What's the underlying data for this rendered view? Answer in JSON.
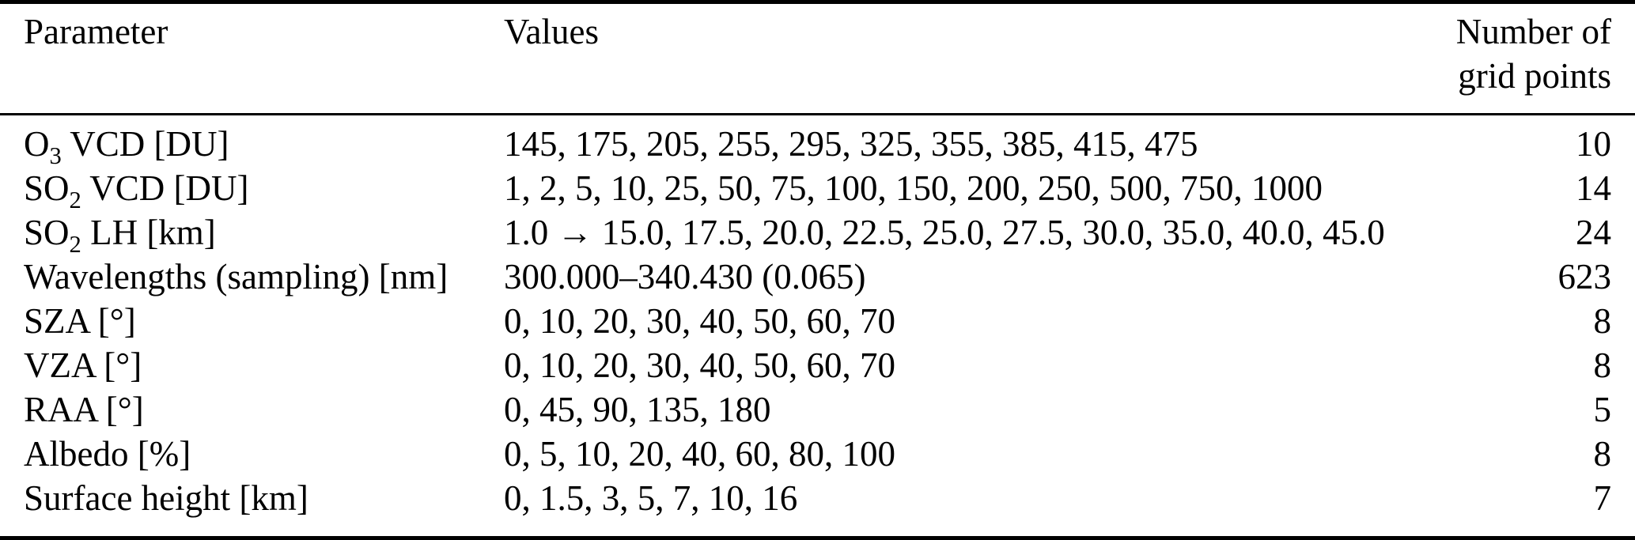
{
  "colors": {
    "background": "#ffffff",
    "text": "#000000",
    "rule": "#000000"
  },
  "table": {
    "header": {
      "parameter": "Parameter",
      "values": "Values",
      "grid_points_line1": "Number of",
      "grid_points_line2": "grid points"
    },
    "rows": [
      {
        "param_base": "O",
        "param_sub": "3",
        "param_rest": " VCD [DU]",
        "values": "145, 175, 205, 255, 295, 325, 355, 385, 415, 475",
        "grid_points": "10"
      },
      {
        "param_base": "SO",
        "param_sub": "2",
        "param_rest": " VCD [DU]",
        "values": "1, 2, 5, 10, 25, 50, 75, 100, 150, 200, 250, 500, 750, 1000",
        "grid_points": "14"
      },
      {
        "param_base": "SO",
        "param_sub": "2",
        "param_rest": " LH [km]",
        "values": "1.0 → 15.0, 17.5, 20.0, 22.5, 25.0, 27.5, 30.0, 35.0, 40.0, 45.0",
        "grid_points": "24"
      },
      {
        "param_base": "Wavelengths (sampling) [nm]",
        "param_sub": "",
        "param_rest": "",
        "values": "300.000–340.430 (0.065)",
        "grid_points": "623"
      },
      {
        "param_base": "SZA [°]",
        "param_sub": "",
        "param_rest": "",
        "values": "0, 10, 20, 30, 40, 50, 60, 70",
        "grid_points": "8"
      },
      {
        "param_base": "VZA [°]",
        "param_sub": "",
        "param_rest": "",
        "values": "0, 10, 20, 30, 40, 50, 60, 70",
        "grid_points": "8"
      },
      {
        "param_base": "RAA [°]",
        "param_sub": "",
        "param_rest": "",
        "values": "0, 45, 90, 135, 180",
        "grid_points": "5"
      },
      {
        "param_base": "Albedo [%]",
        "param_sub": "",
        "param_rest": "",
        "values": "0, 5, 10, 20, 40, 60, 80, 100",
        "grid_points": "8"
      },
      {
        "param_base": "Surface height [km]",
        "param_sub": "",
        "param_rest": "",
        "values": "0, 1.5, 3, 5, 7, 10, 16",
        "grid_points": "7"
      }
    ]
  }
}
